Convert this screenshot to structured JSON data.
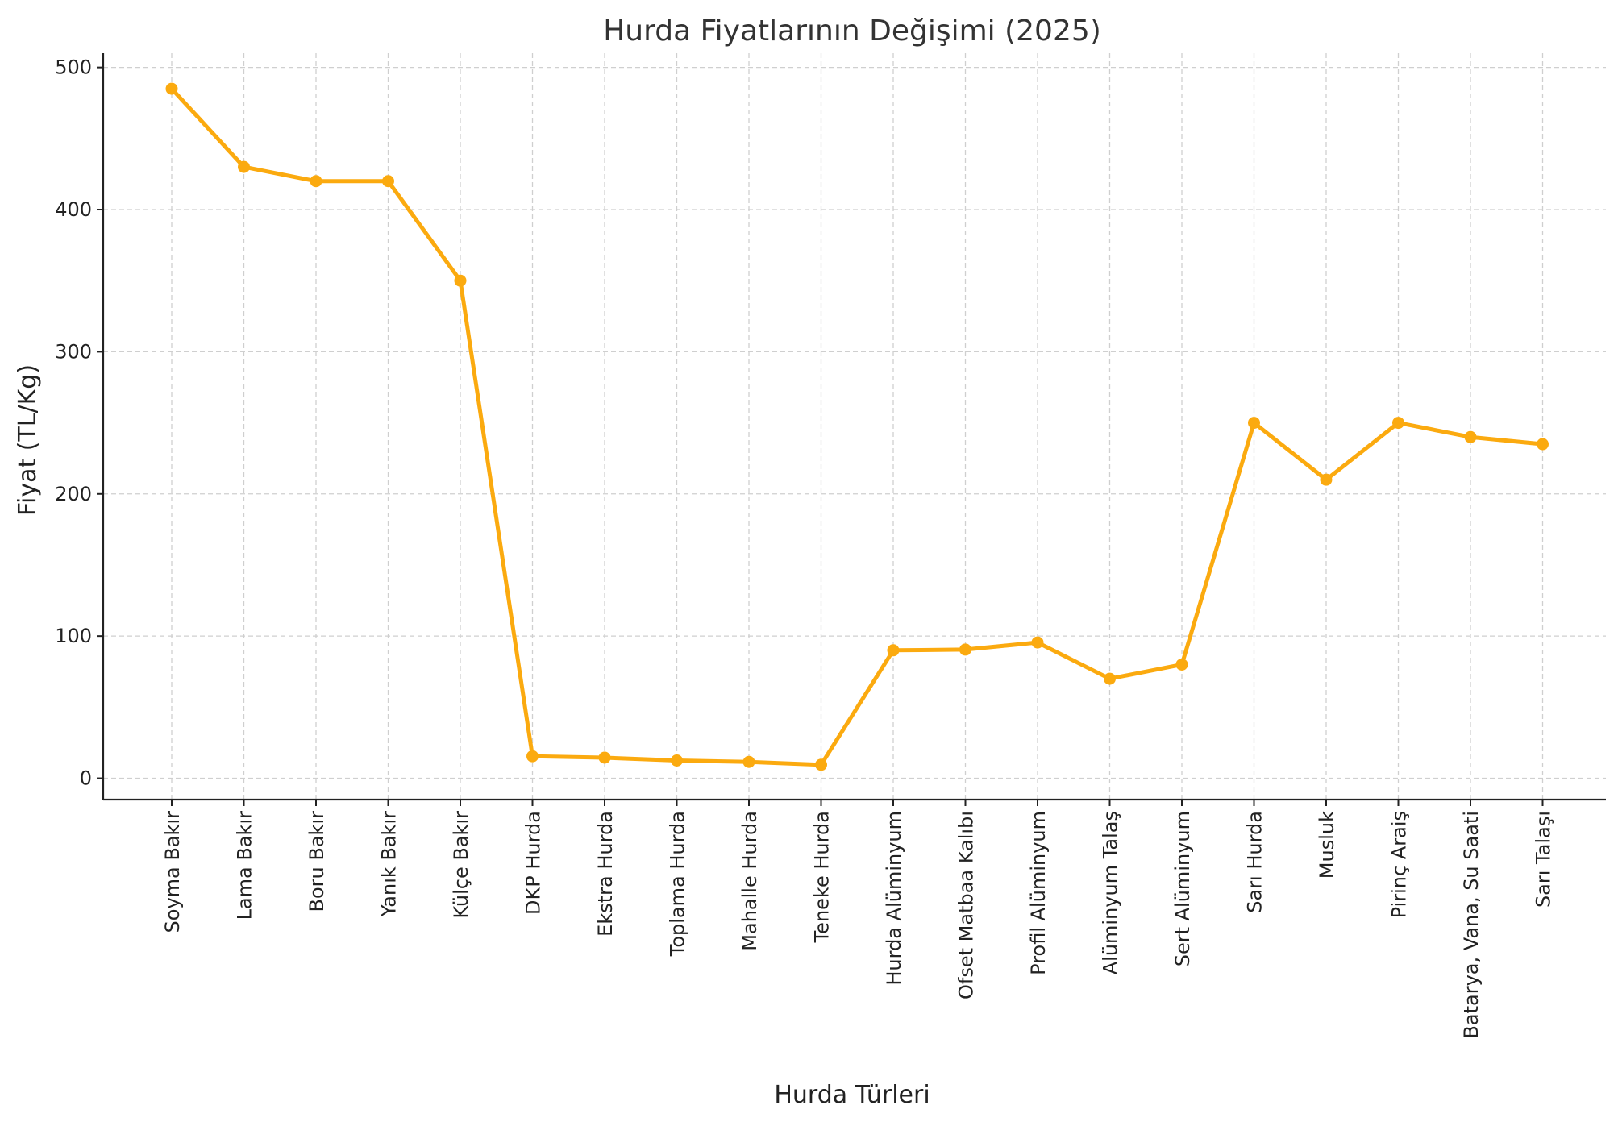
{
  "chart_data": {
    "type": "line",
    "title": "Hurda Fiyatlarının Değişimi (2025)",
    "xlabel": "Hurda Türleri",
    "ylabel": "Fiyat (TL/Kg)",
    "categories": [
      "Soyma Bakır",
      "Lama Bakır",
      "Boru Bakır",
      "Yanık Bakır",
      "Külçe Bakır",
      "DKP Hurda",
      "Ekstra Hurda",
      "Toplama Hurda",
      "Mahalle Hurda",
      "Teneke Hurda",
      "Hurda Alüminyum",
      "Ofset Matbaa Kalıbı",
      "Profil Alüminyum",
      "Alüminyum Talaş",
      "Sert Alüminyum",
      "Sarı Hurda",
      "Musluk",
      "Pirinç Araiş",
      "Batarya, Vana, Su Saati",
      "Sarı Talaşı"
    ],
    "values": [
      485,
      430,
      420,
      420,
      350,
      15.5,
      14.5,
      12.5,
      11.5,
      9.5,
      90,
      90.5,
      95.5,
      70,
      80,
      250,
      210,
      250,
      240,
      235
    ],
    "ylim": [
      -15,
      510
    ],
    "yticks": [
      0,
      100,
      200,
      300,
      400,
      500
    ],
    "grid": true,
    "color": "#FBAA0F"
  }
}
